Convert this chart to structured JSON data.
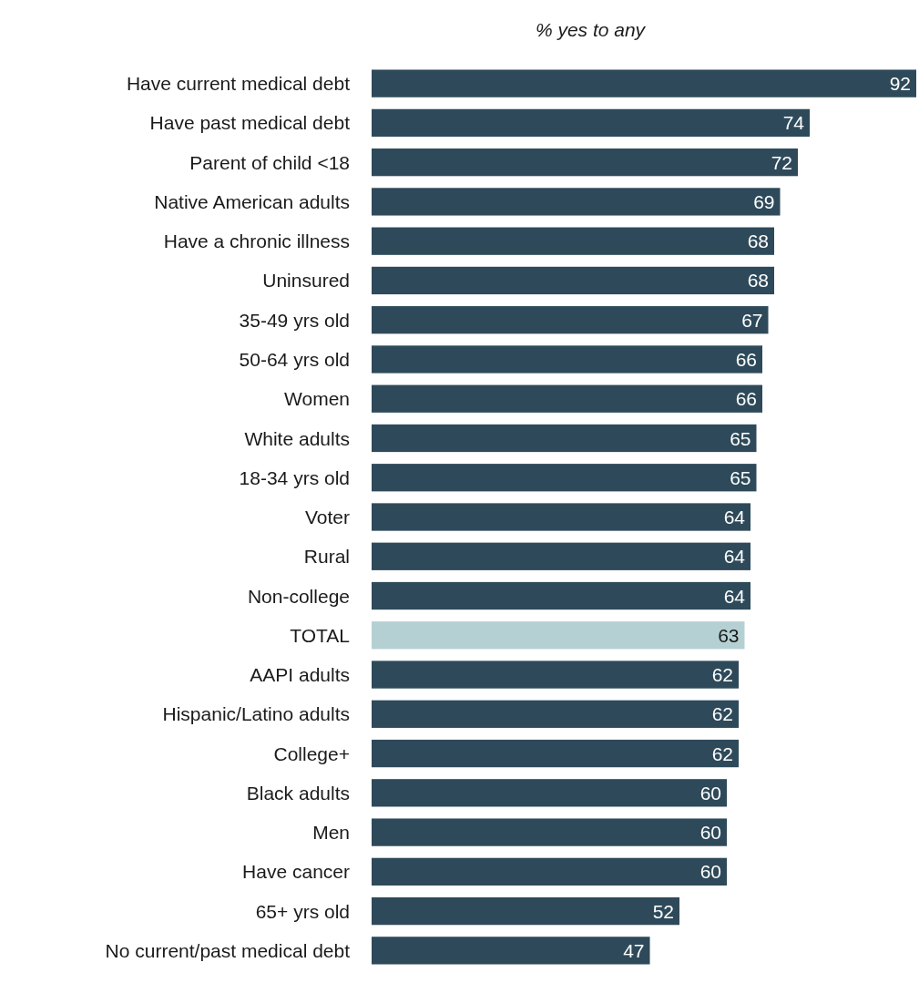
{
  "chart_data": {
    "type": "bar",
    "orientation": "horizontal",
    "title": "% yes to any",
    "data_labels": true,
    "categories": [
      "Have current medical debt",
      "Have past medical debt",
      "Parent of child <18",
      "Native American adults",
      "Have a chronic illness",
      "Uninsured",
      "35-49 yrs old",
      "50-64 yrs old",
      "Women",
      "White adults",
      "18-34 yrs old",
      "Voter",
      "Rural",
      "Non-college",
      "TOTAL",
      "AAPI adults",
      "Hispanic/Latino adults",
      "College+",
      "Black adults",
      "Men",
      "Have cancer",
      "65+ yrs old",
      "No current/past medical debt"
    ],
    "values": [
      92,
      74,
      72,
      69,
      68,
      68,
      67,
      66,
      66,
      65,
      65,
      64,
      64,
      64,
      63,
      62,
      62,
      62,
      60,
      60,
      60,
      52,
      47
    ],
    "colors": [
      "#2e4a5a",
      "#2e4a5a",
      "#2e4a5a",
      "#2e4a5a",
      "#2e4a5a",
      "#2e4a5a",
      "#2e4a5a",
      "#2e4a5a",
      "#2e4a5a",
      "#2e4a5a",
      "#2e4a5a",
      "#2e4a5a",
      "#2e4a5a",
      "#2e4a5a",
      "#b5d0d3",
      "#2e4a5a",
      "#2e4a5a",
      "#2e4a5a",
      "#2e4a5a",
      "#2e4a5a",
      "#2e4a5a",
      "#2e4a5a",
      "#2e4a5a"
    ]
  }
}
